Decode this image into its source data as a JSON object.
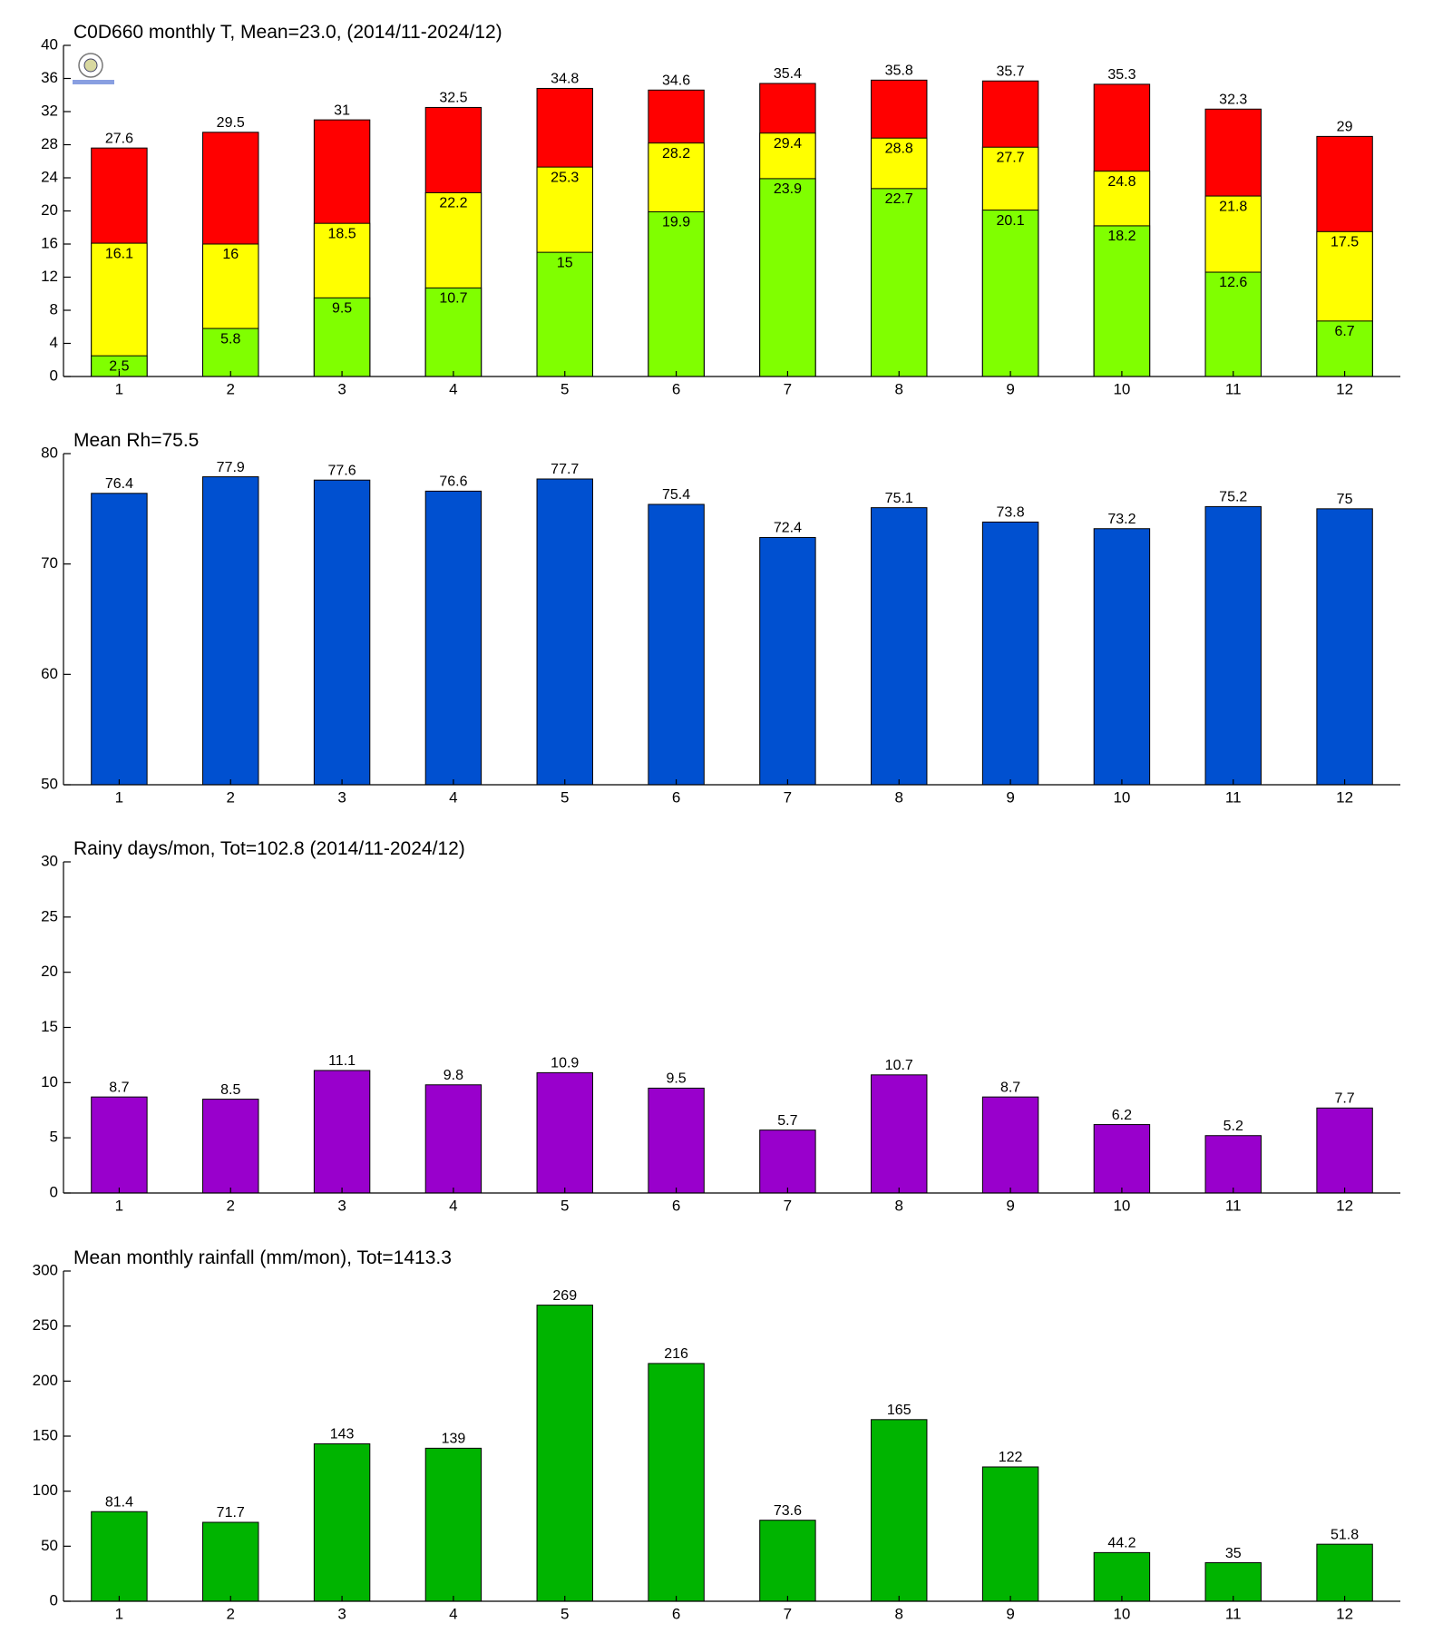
{
  "chart_data": [
    {
      "type": "overlay",
      "title": "C0D660 monthly T, Mean=23.0, (2014/11-2024/12)",
      "categories": [
        "1",
        "2",
        "3",
        "4",
        "5",
        "6",
        "7",
        "8",
        "9",
        "10",
        "11",
        "12"
      ],
      "series": [
        {
          "color": "#80ff00",
          "values": [
            2.5,
            5.8,
            9.5,
            10.7,
            15,
            19.9,
            23.9,
            22.7,
            20.1,
            18.2,
            12.6,
            6.7
          ]
        },
        {
          "color": "#ffff00",
          "values": [
            16.1,
            16,
            18.5,
            22.2,
            25.3,
            28.2,
            29.4,
            28.8,
            27.7,
            24.8,
            21.8,
            17.5
          ]
        },
        {
          "color": "#ff0000",
          "values": [
            27.6,
            29.5,
            31,
            32.5,
            34.8,
            34.6,
            35.4,
            35.8,
            35.7,
            35.3,
            32.3,
            29
          ]
        }
      ],
      "ylim": [
        0,
        40
      ],
      "yticks": [
        0,
        4,
        8,
        12,
        16,
        20,
        24,
        28,
        32,
        36,
        40
      ]
    },
    {
      "type": "bar",
      "title": "Mean Rh=75.5",
      "categories": [
        "1",
        "2",
        "3",
        "4",
        "5",
        "6",
        "7",
        "8",
        "9",
        "10",
        "11",
        "12"
      ],
      "values": [
        76.4,
        77.9,
        77.6,
        76.6,
        77.7,
        75.4,
        72.4,
        75.1,
        73.8,
        73.2,
        75.2,
        75
      ],
      "color": "#0050d0",
      "ylim": [
        50,
        80
      ],
      "yticks": [
        50,
        60,
        70,
        80
      ]
    },
    {
      "type": "bar",
      "title": "Rainy days/mon, Tot=102.8 (2014/11-2024/12)",
      "categories": [
        "1",
        "2",
        "3",
        "4",
        "5",
        "6",
        "7",
        "8",
        "9",
        "10",
        "11",
        "12"
      ],
      "values": [
        8.7,
        8.5,
        11.1,
        9.8,
        10.9,
        9.5,
        5.7,
        10.7,
        8.7,
        6.2,
        5.2,
        7.7
      ],
      "color": "#9900cc",
      "ylim": [
        0,
        30
      ],
      "yticks": [
        0,
        5,
        10,
        15,
        20,
        25,
        30
      ]
    },
    {
      "type": "bar",
      "title": "Mean monthly rainfall (mm/mon), Tot=1413.3",
      "categories": [
        "1",
        "2",
        "3",
        "4",
        "5",
        "6",
        "7",
        "8",
        "9",
        "10",
        "11",
        "12"
      ],
      "values": [
        81.4,
        71.7,
        143,
        139,
        269,
        216,
        73.6,
        165,
        122,
        44.2,
        35,
        51.8
      ],
      "color": "#00b400",
      "ylim": [
        0,
        300
      ],
      "yticks": [
        0,
        50,
        100,
        150,
        200,
        250,
        300
      ]
    }
  ]
}
